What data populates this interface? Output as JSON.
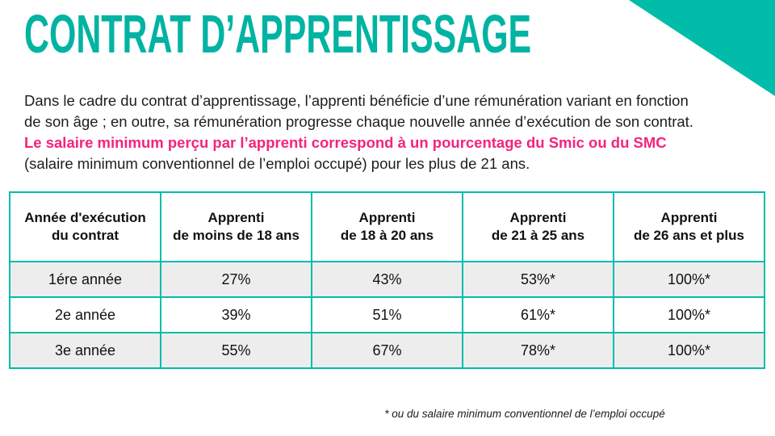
{
  "colors": {
    "teal_accent": "#00bca8",
    "teal_border": "#00bdaa",
    "pink_highlight": "#f5237d",
    "row_alt_background": "#ededed",
    "text": "#1d1d1d"
  },
  "title": "CONTRAT D’APPRENTISSAGE",
  "intro": {
    "part1": "Dans le cadre du contrat d’apprentissage, l’apprenti bénéficie d’une rémunération variant en fonction de son âge ; en outre, sa rémunération progresse chaque nouvelle année d’exécution de son contrat.",
    "highlight": "Le salaire minimum perçu par l’apprenti correspond à un pourcentage du Smic ou du SMC",
    "part2": " (salaire minimum conventionnel de l’emploi occupé) pour les plus de 21 ans."
  },
  "table": {
    "headers": [
      {
        "line1": "Année d'exécution",
        "line2": "du contrat"
      },
      {
        "line1": "Apprenti",
        "line2": "de moins de 18 ans"
      },
      {
        "line1": "Apprenti",
        "line2": "de 18 à 20 ans"
      },
      {
        "line1": "Apprenti",
        "line2": "de 21 à 25 ans"
      },
      {
        "line1": "Apprenti",
        "line2": "de 26 ans et plus"
      }
    ],
    "rows": [
      {
        "label": "1ére année",
        "values": [
          "27%",
          "43%",
          "53%*",
          "100%*"
        ]
      },
      {
        "label": "2e année",
        "values": [
          "39%",
          "51%",
          "61%*",
          "100%*"
        ]
      },
      {
        "label": "3e année",
        "values": [
          "55%",
          "67%",
          "78%*",
          "100%*"
        ]
      }
    ]
  },
  "footnote": "* ou du salaire minimum conventionnel de l’emploi occupé"
}
